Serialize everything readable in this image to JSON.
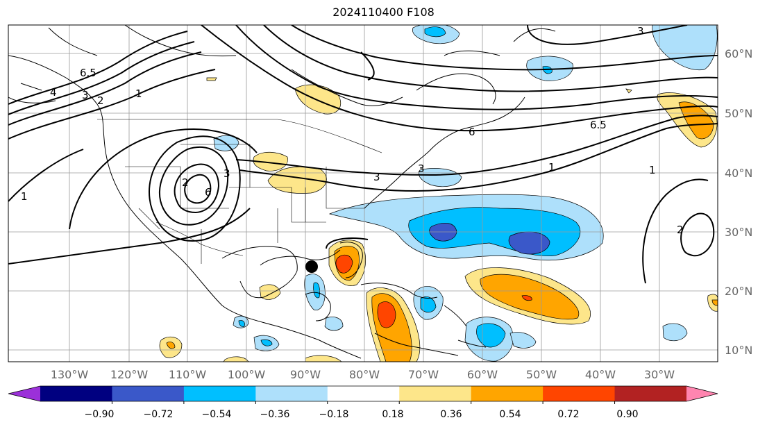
{
  "title": "2024110400 F108",
  "map": {
    "lon_labels": [
      "130°W",
      "120°W",
      "110°W",
      "100°W",
      "90°W",
      "80°W",
      "70°W",
      "60°W",
      "50°W",
      "40°W",
      "30°W"
    ],
    "lat_labels": [
      "60°N",
      "50°N",
      "40°N",
      "30°N",
      "20°N",
      "10°N"
    ],
    "contour_labels": [
      "6.5",
      "4",
      "3",
      "2",
      "1",
      "6",
      "2",
      "1",
      "3",
      "6.5",
      "3",
      "1",
      "2",
      "1",
      "3",
      "3",
      "6"
    ],
    "marker": {
      "name": "storm-center-marker",
      "color": "#000000"
    }
  },
  "colorbar": {
    "ticks": [
      "−0.90",
      "−0.72",
      "−0.54",
      "−0.36",
      "−0.18",
      "0.18",
      "0.36",
      "0.54",
      "0.72",
      "0.90"
    ],
    "colors": [
      "#9b30d9",
      "#000080",
      "#3a58c9",
      "#00bfff",
      "#aee0fb",
      "#ffffff",
      "#fde68a",
      "#ffa500",
      "#ff4500",
      "#b22222",
      "#ff85b0"
    ]
  }
}
